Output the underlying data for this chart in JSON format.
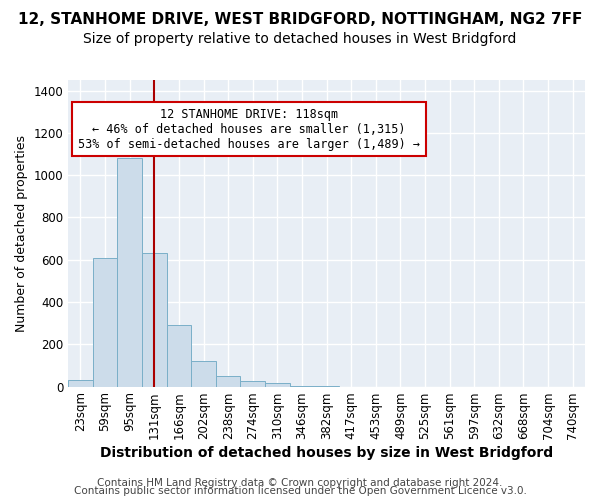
{
  "title1": "12, STANHOME DRIVE, WEST BRIDGFORD, NOTTINGHAM, NG2 7FF",
  "title2": "Size of property relative to detached houses in West Bridgford",
  "xlabel": "Distribution of detached houses by size in West Bridgford",
  "ylabel": "Number of detached properties",
  "footer1": "Contains HM Land Registry data © Crown copyright and database right 2024.",
  "footer2": "Contains public sector information licensed under the Open Government Licence v3.0.",
  "bin_labels": [
    "23sqm",
    "59sqm",
    "95sqm",
    "131sqm",
    "166sqm",
    "202sqm",
    "238sqm",
    "274sqm",
    "310sqm",
    "346sqm",
    "382sqm",
    "417sqm",
    "453sqm",
    "489sqm",
    "525sqm",
    "561sqm",
    "597sqm",
    "632sqm",
    "668sqm",
    "704sqm",
    "740sqm"
  ],
  "bar_values": [
    30,
    610,
    1080,
    630,
    290,
    120,
    50,
    25,
    18,
    5,
    2,
    0,
    0,
    0,
    0,
    0,
    0,
    0,
    0,
    0,
    0
  ],
  "bar_color": "#ccdcea",
  "bar_edge_color": "#7aafc8",
  "ylim": [
    0,
    1450
  ],
  "yticks": [
    0,
    200,
    400,
    600,
    800,
    1000,
    1200,
    1400
  ],
  "vline_color": "#aa0000",
  "annotation_line1": "12 STANHOME DRIVE: 118sqm",
  "annotation_line2": "← 46% of detached houses are smaller (1,315)",
  "annotation_line3": "53% of semi-detached houses are larger (1,489) →",
  "annotation_box_color": "#ffffff",
  "annotation_border_color": "#cc0000",
  "plot_bg_color": "#e8eef5",
  "fig_bg_color": "#ffffff",
  "grid_color": "#ffffff",
  "title1_fontsize": 11,
  "title2_fontsize": 10,
  "xlabel_fontsize": 10,
  "ylabel_fontsize": 9,
  "tick_fontsize": 8.5,
  "footer_fontsize": 7.5
}
